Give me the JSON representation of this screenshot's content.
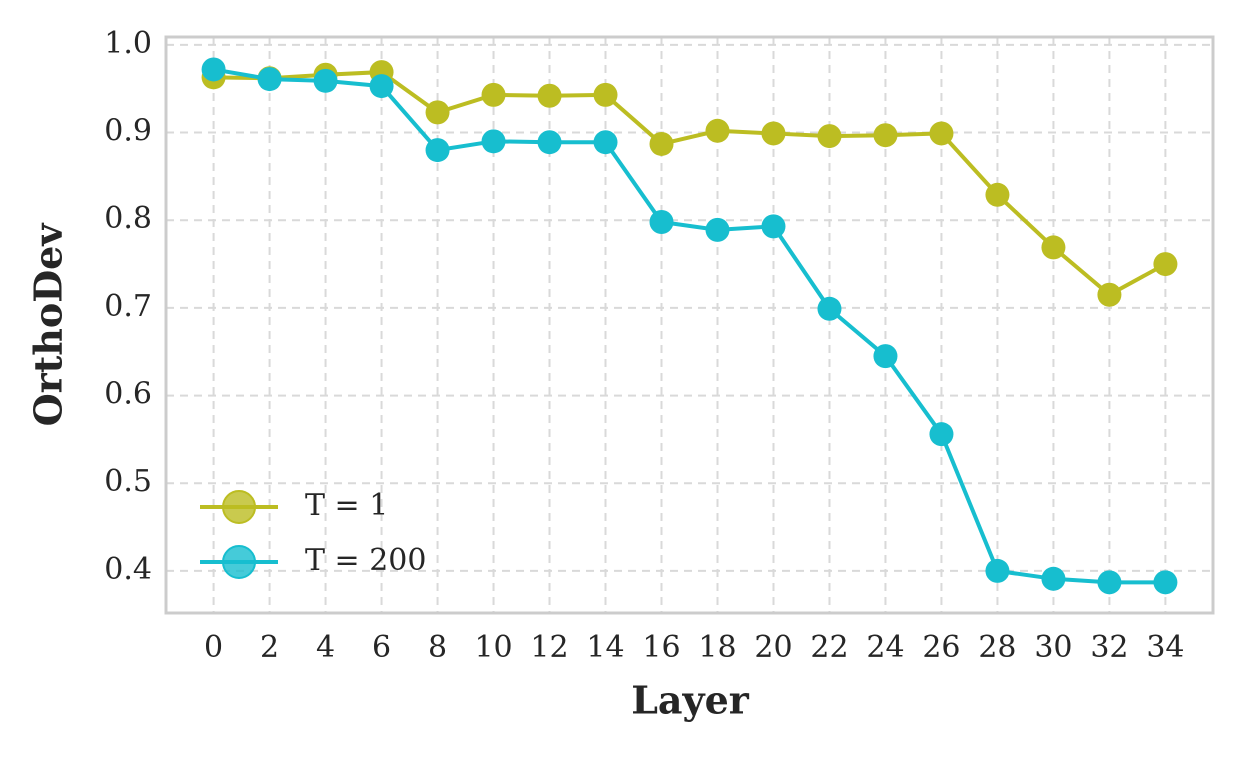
{
  "chart_data": {
    "type": "line",
    "x_label": "Layer",
    "y_label": "OrthoDev",
    "x": [
      0,
      2,
      4,
      6,
      8,
      10,
      12,
      14,
      16,
      18,
      20,
      22,
      24,
      26,
      28,
      30,
      32,
      34
    ],
    "series": [
      {
        "name": "T = 1",
        "color": "#bcbd22",
        "values": [
          0.963,
          0.962,
          0.966,
          0.969,
          0.923,
          0.943,
          0.942,
          0.943,
          0.887,
          0.902,
          0.899,
          0.896,
          0.897,
          0.899,
          0.829,
          0.769,
          0.715,
          0.75
        ]
      },
      {
        "name": "T = 200",
        "color": "#17becf",
        "values": [
          0.972,
          0.961,
          0.959,
          0.953,
          0.88,
          0.89,
          0.889,
          0.889,
          0.798,
          0.789,
          0.793,
          0.699,
          0.645,
          0.556,
          0.4,
          0.391,
          0.387,
          0.387
        ]
      }
    ],
    "xlim": [
      -1.7,
      35.7
    ],
    "ylim": [
      0.352,
      1.009
    ],
    "xticks": [
      0,
      2,
      4,
      6,
      8,
      10,
      12,
      14,
      16,
      18,
      20,
      22,
      24,
      26,
      28,
      30,
      32,
      34
    ],
    "yticks": [
      0.4,
      0.5,
      0.6,
      0.7,
      0.8,
      0.9,
      {
        "value": 1,
        "label": "1.0"
      }
    ],
    "grid": true,
    "legend": "lower left"
  }
}
